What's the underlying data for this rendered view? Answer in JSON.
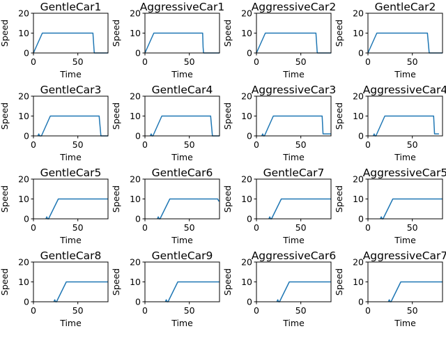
{
  "chart_data": {
    "type": "line",
    "grid_rows": 4,
    "grid_cols": 4,
    "grid": false,
    "legend": "none",
    "series_color": "#1f77b4",
    "xlabel": "Time",
    "ylabel": "Speed",
    "xlim": [
      0,
      84
    ],
    "ylim": [
      0,
      20
    ],
    "xticks": [
      0,
      50
    ],
    "yticks": [
      0,
      10,
      20
    ],
    "subplots": [
      {
        "title": "GentleCar1",
        "x": [
          0,
          10,
          67,
          68.5,
          84
        ],
        "y": [
          0,
          10,
          10,
          0,
          0
        ]
      },
      {
        "title": "AggressiveCar1",
        "x": [
          0,
          10,
          65,
          65.5,
          66,
          84
        ],
        "y": [
          0,
          10,
          10,
          3,
          0,
          0
        ]
      },
      {
        "title": "AggressiveCar2",
        "x": [
          0,
          10,
          67,
          68.5,
          84
        ],
        "y": [
          0,
          10,
          10,
          0,
          0
        ]
      },
      {
        "title": "GentleCar2",
        "x": [
          0,
          10,
          67,
          69,
          84
        ],
        "y": [
          0,
          10,
          10,
          0,
          0
        ]
      },
      {
        "title": "GentleCar3",
        "x": [
          5,
          6,
          7,
          8,
          9,
          19,
          74,
          76,
          84
        ],
        "y": [
          0,
          1,
          0,
          0,
          0,
          10,
          10,
          0,
          0
        ]
      },
      {
        "title": "GentleCar4",
        "x": [
          6,
          7,
          8,
          9,
          19,
          74,
          76,
          84
        ],
        "y": [
          0,
          1,
          0,
          0,
          10,
          10,
          0,
          0
        ]
      },
      {
        "title": "AggressiveCar3",
        "x": [
          6,
          7,
          8,
          9,
          19,
          74,
          75,
          84
        ],
        "y": [
          0,
          1,
          0,
          0,
          10,
          10,
          1,
          1
        ]
      },
      {
        "title": "AggressiveCar4",
        "x": [
          6,
          7,
          8,
          9,
          19,
          74,
          75,
          80
        ],
        "y": [
          0,
          1,
          0,
          0,
          10,
          10,
          1,
          1
        ]
      },
      {
        "title": "GentleCar5",
        "x": [
          14,
          15,
          16,
          17,
          28,
          84
        ],
        "y": [
          0,
          1,
          0,
          0,
          10,
          10
        ]
      },
      {
        "title": "GentleCar6",
        "x": [
          14,
          15,
          16,
          17,
          28,
          82,
          83,
          84
        ],
        "y": [
          0,
          1,
          0,
          0,
          10,
          10,
          9,
          9
        ]
      },
      {
        "title": "GentleCar7",
        "x": [
          14,
          15,
          16,
          17,
          28,
          84
        ],
        "y": [
          0,
          1,
          0,
          0,
          10,
          10
        ]
      },
      {
        "title": "AggressiveCar5",
        "x": [
          14,
          15,
          16,
          17,
          28,
          84
        ],
        "y": [
          0,
          1,
          0,
          0,
          10,
          10
        ]
      },
      {
        "title": "GentleCar8",
        "x": [
          23,
          24,
          25,
          26,
          37,
          84
        ],
        "y": [
          0,
          1,
          0,
          0,
          10,
          10
        ]
      },
      {
        "title": "GentleCar9",
        "x": [
          23,
          24,
          25,
          26,
          37,
          84
        ],
        "y": [
          0,
          1,
          0,
          0,
          10,
          10
        ]
      },
      {
        "title": "AggressiveCar6",
        "x": [
          23,
          24,
          25,
          26,
          37,
          84
        ],
        "y": [
          0,
          1,
          0,
          0,
          10,
          10
        ]
      },
      {
        "title": "AggressiveCar7",
        "x": [
          23,
          24,
          25,
          26,
          37,
          84
        ],
        "y": [
          0,
          1,
          0,
          0,
          10,
          10
        ]
      }
    ]
  }
}
